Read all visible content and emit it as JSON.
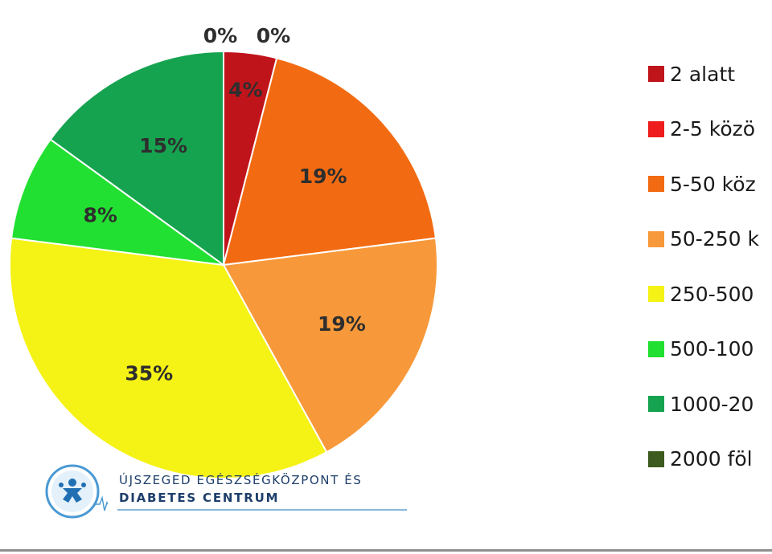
{
  "chart_data": {
    "type": "pie",
    "title": "",
    "series": [
      {
        "label": "2 alatt",
        "value": 4,
        "display": "4%",
        "color": "#c0141b"
      },
      {
        "label": "2-5 közö",
        "value": 0,
        "display": "0%",
        "color": "#ee1c1c"
      },
      {
        "label": "5-50 köz",
        "value": 19,
        "display": "19%",
        "color": "#f26b12"
      },
      {
        "label": "50-250 k",
        "value": 19,
        "display": "19%",
        "color": "#f7993a"
      },
      {
        "label": "250-500",
        "value": 35,
        "display": "35%",
        "color": "#f5f216"
      },
      {
        "label": "500-100",
        "value": 8,
        "display": "8%",
        "color": "#22e031"
      },
      {
        "label": "1000-20",
        "value": 15,
        "display": "15%",
        "color": "#16a350"
      },
      {
        "label": "2000 föl",
        "value": 0,
        "display": "0%",
        "color": "#3d5a1f"
      }
    ],
    "start_angle_deg": 0,
    "direction": "clockwise",
    "legend_position": "right"
  },
  "logo": {
    "line1": "ÚJSZEGED EGÉSZSÉGKÖZPONT ÉS",
    "line2": "DIABETES CENTRUM"
  }
}
